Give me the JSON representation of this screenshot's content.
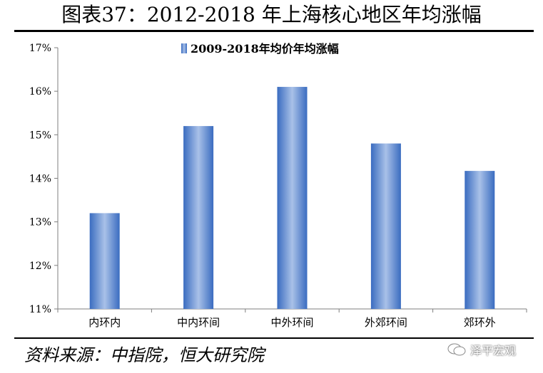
{
  "title": "图表37：2012-2018 年上海核心地区年均涨幅",
  "source": "资料来源：中指院，恒大研究院",
  "watermark": "泽平宏观",
  "colors": {
    "bar_edge": "#3a6cc0",
    "bar_mid": "#a9c1e8",
    "axis": "#7f7f7f"
  },
  "chart_data": {
    "type": "bar",
    "categories": [
      "内环内",
      "中内环间",
      "中外环间",
      "外郊环间",
      "郊环外"
    ],
    "series": [
      {
        "name": "2009-2018年均价年均涨幅",
        "values": [
          13.2,
          15.2,
          16.1,
          14.8,
          14.17
        ]
      }
    ],
    "ylim": [
      11,
      17
    ],
    "yticks": [
      "11%",
      "12%",
      "13%",
      "14%",
      "15%",
      "16%",
      "17%"
    ],
    "legend_position": "top-center",
    "grid": false
  }
}
